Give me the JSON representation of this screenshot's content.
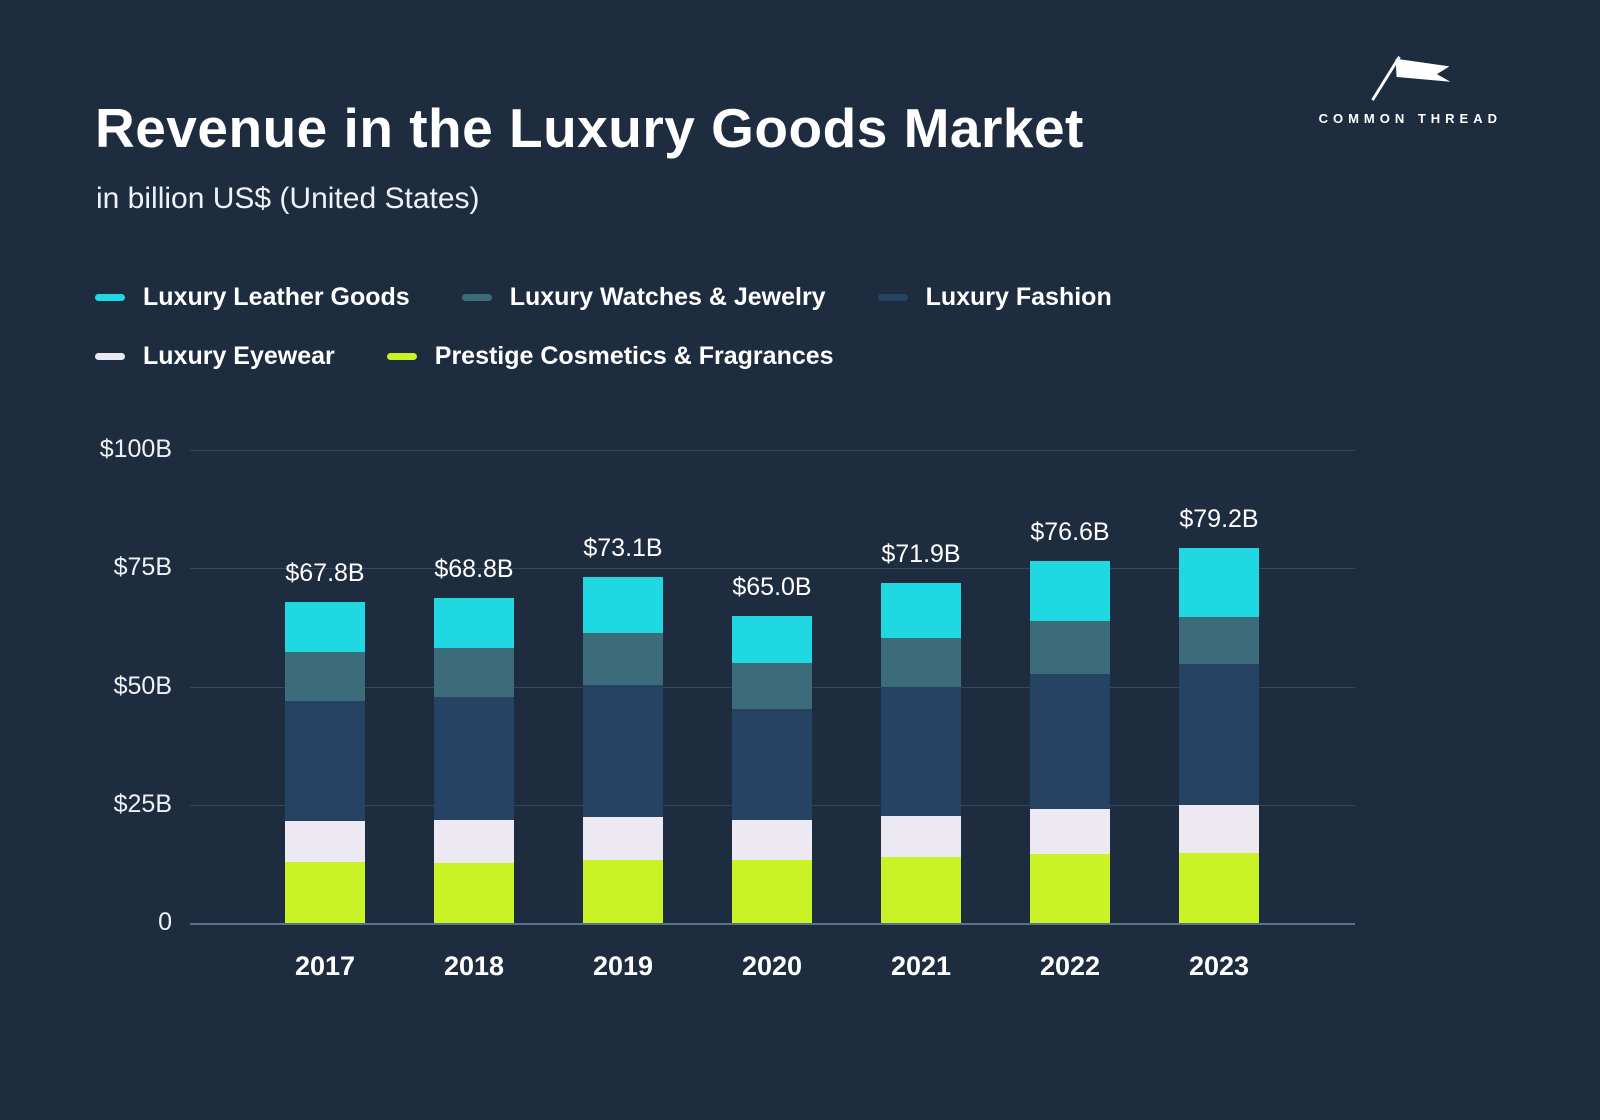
{
  "page": {
    "title": "Revenue in the Luxury Goods Market",
    "subtitle": "in billion US$ (United States)",
    "background": "#1d2c3f"
  },
  "logo": {
    "text": "COMMON THREAD",
    "icon": "flag-icon",
    "color": "#ffffff"
  },
  "chart_data": {
    "type": "bar",
    "stacked": true,
    "title": "Revenue in the Luxury Goods Market",
    "subtitle": "in billion US$ (United States)",
    "categories": [
      "2017",
      "2018",
      "2019",
      "2020",
      "2021",
      "2022",
      "2023"
    ],
    "totals": [
      67.8,
      68.8,
      73.1,
      65.0,
      71.9,
      76.6,
      79.2
    ],
    "totals_labels": [
      "$67.8B",
      "$68.8B",
      "$73.1B",
      "$65.0B",
      "$71.9B",
      "$76.6B",
      "$79.2B"
    ],
    "series": [
      {
        "name": "Prestige Cosmetics & Fragrances",
        "color": "#c9f227",
        "values": [
          12.8,
          12.7,
          13.3,
          13.3,
          13.9,
          14.5,
          14.8
        ]
      },
      {
        "name": "Luxury Eyewear",
        "color": "#ece9f3",
        "values": [
          8.8,
          9.0,
          9.1,
          8.4,
          8.8,
          9.7,
          10.1
        ]
      },
      {
        "name": "Luxury Fashion",
        "color": "#264363",
        "values": [
          25.4,
          26.1,
          28.0,
          23.6,
          27.2,
          28.4,
          29.8
        ]
      },
      {
        "name": "Luxury Watches & Jewelry",
        "color": "#3c6b7a",
        "values": [
          10.3,
          10.4,
          11.0,
          9.7,
          10.4,
          11.2,
          9.9
        ]
      },
      {
        "name": "Luxury Leather Goods",
        "color": "#1fd8e2",
        "values": [
          10.5,
          10.6,
          11.7,
          10.0,
          11.6,
          12.8,
          14.6
        ]
      }
    ],
    "stack_order_note": "series listed bottom-to-top",
    "y_ticks": [
      {
        "label": "$100B",
        "value": 100
      },
      {
        "label": "$75B",
        "value": 75
      },
      {
        "label": "$50B",
        "value": 50
      },
      {
        "label": "$25B",
        "value": 25
      },
      {
        "label": "0",
        "value": 0
      }
    ],
    "ylim": [
      0,
      100
    ],
    "grid": "horizontal",
    "legend_position": "top-left",
    "legend_rows": [
      [
        "Luxury Leather Goods",
        "Luxury Watches & Jewelry",
        "Luxury Fashion"
      ],
      [
        "Luxury Eyewear",
        "Prestige Cosmetics & Fragrances"
      ]
    ]
  }
}
